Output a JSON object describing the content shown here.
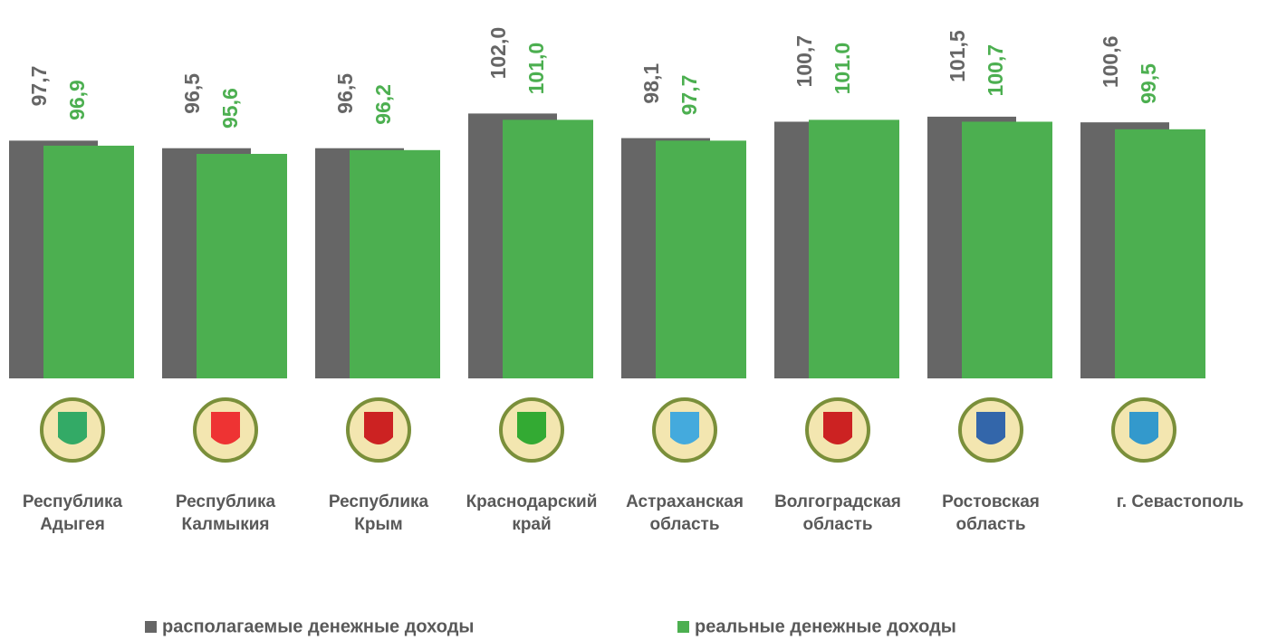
{
  "chart_data": {
    "type": "bar",
    "categories": [
      [
        "Республика",
        "Адыгея"
      ],
      [
        "Республика",
        "Калмыкия"
      ],
      [
        "Республика",
        "Крым"
      ],
      [
        "Краснодарский",
        "край"
      ],
      [
        "Астраханская",
        "область"
      ],
      [
        "Волгоградская",
        "область"
      ],
      [
        "Ростовская",
        "область"
      ],
      [
        "г. Севастополь"
      ]
    ],
    "series": [
      {
        "name": "располагаемые денежные доходы",
        "color": "#666666",
        "values": [
          97.7,
          96.5,
          96.5,
          102.0,
          98.1,
          100.7,
          101.5,
          100.6
        ],
        "value_labels": [
          "97,7",
          "96,5",
          "96,5",
          "102,0",
          "98,1",
          "100,7",
          "101,5",
          "100,6"
        ]
      },
      {
        "name": "реальные денежные доходы",
        "color": "#4caf50",
        "values": [
          96.9,
          95.6,
          96.2,
          101.0,
          97.7,
          101.0,
          100.7,
          99.5
        ],
        "value_labels": [
          "96,9",
          "95,6",
          "96,2",
          "101,0",
          "97,7",
          "101.0",
          "100,7",
          "99,5"
        ]
      }
    ],
    "ylim": [
      60,
      120
    ]
  }
}
